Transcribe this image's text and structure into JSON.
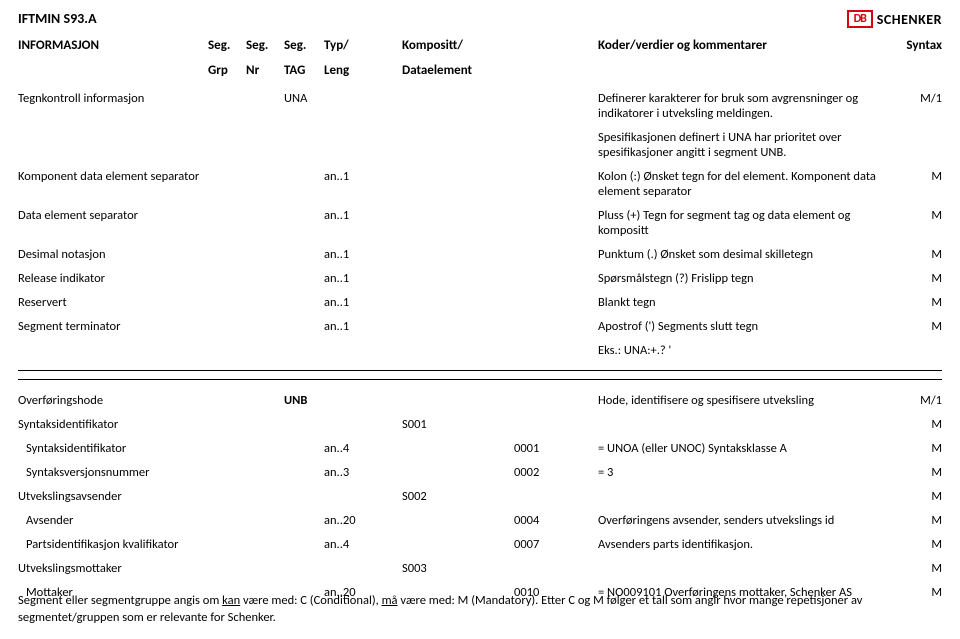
{
  "doc_title": "IFTMIN S93.A",
  "logo": {
    "initials": "DB",
    "brand": "SCHENKER"
  },
  "headers": {
    "c1": "INFORMASJON",
    "c2": "Seg.",
    "c3": "Seg.",
    "c4": "Seg.",
    "c5": "Typ/",
    "c7": "Kompositt/",
    "c10": "Koder/verdier og kommentarer",
    "c11": "Syntax",
    "s2": "Grp",
    "s3": "Nr",
    "s4": "TAG",
    "s5": "Leng",
    "s7": "Dataelement"
  },
  "rows_a": [
    {
      "c1": "Tegnkontroll informasjon",
      "c4": "UNA",
      "c10": "Definerer karakterer for bruk som avgrensninger og indikatorer i utveksling meldingen.",
      "c11": "M/1"
    },
    {
      "c10": "Spesifikasjonen definert i UNA har prioritet over spesifikasjoner angitt i segment UNB."
    },
    {
      "c1": "Komponent data element separator",
      "c5": "an..1",
      "c10": "Kolon (:) Ønsket tegn for del element. Komponent data element separator",
      "c11": "M"
    },
    {
      "c1": "Data element separator",
      "c5": "an..1",
      "c10": "Pluss (+) Tegn for segment tag og data element og kompositt",
      "c11": "M"
    },
    {
      "c1": "Desimal notasjon",
      "c5": "an..1",
      "c10": "Punktum (.)  Ønsket som desimal skilletegn",
      "c11": "M"
    },
    {
      "c1": "Release indikator",
      "c5": "an..1",
      "c10": "Spørsmålstegn (?)      Frislipp tegn",
      "c11": "M"
    },
    {
      "c1": "Reservert",
      "c5": "an..1",
      "c10": "Blankt tegn",
      "c11": "M"
    },
    {
      "c1": "Segment terminator",
      "c5": "an..1",
      "c10": "Apostrof (') Segments slutt tegn",
      "c11": "M"
    },
    {
      "c10": "Eks.: UNA:+.? '"
    }
  ],
  "rows_b": [
    {
      "c1": "Overføringshode",
      "c4": "UNB",
      "c10": "Hode, identifisere og spesifisere utveksling",
      "c11": "M/1",
      "bold": true
    },
    {
      "c1": "Syntaksidentifikator",
      "c7": "S001",
      "c11": "M",
      "bold": true
    },
    {
      "c1": "Syntaksidentifikator",
      "c5": "an..4",
      "c9": "0001",
      "c10": "= UNOA (eller UNOC)           Syntaksklasse A",
      "c11": "M",
      "indent": true
    },
    {
      "c1": "Syntaksversjonsnummer",
      "c5": "an..3",
      "c9": "0002",
      "c10": "= 3",
      "c11": "M",
      "indent": true
    },
    {
      "c1": "Utvekslingsavsender",
      "c7": "S002",
      "c11": "M",
      "bold": true
    },
    {
      "c1": "Avsender",
      "c5": "an..20",
      "c9": "0004",
      "c10": "Overføringens avsender, senders utvekslings id",
      "c11": "M",
      "indent": true
    },
    {
      "c1": "Partsidentifikasjon kvalifikator",
      "c5": "an..4",
      "c9": "0007",
      "c10": " Avsenders parts identifikasjon.",
      "c11": "M",
      "indent": true
    },
    {
      "c1": "Utvekslingsmottaker",
      "c7": "S003",
      "c11": "M",
      "bold": true
    },
    {
      "c1": "Mottaker",
      "c5": "an..20",
      "c9": "0010",
      "c10": "= NO009101        Overføringens mottaker, Schenker AS",
      "c11": "M",
      "indent": true
    }
  ],
  "footer": {
    "p1a": "Segment eller segmentgruppe angis om ",
    "p1u1": "kan",
    "p1b": " være med: C (Conditional), ",
    "p1u2": "må",
    "p1c": " være med: M (Mandatory). Etter C og M følger et tall som angir hvor mange repetisjoner av segmentet/gruppen som er relevante for Schenker."
  }
}
